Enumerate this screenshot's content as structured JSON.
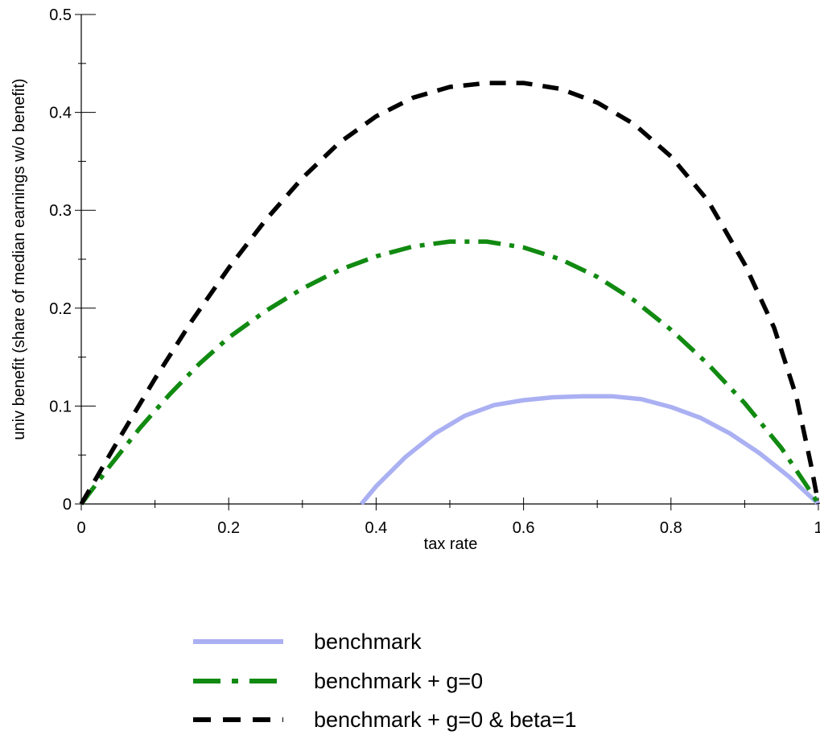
{
  "chart_data": {
    "type": "line",
    "title": "",
    "xlabel": "tax rate",
    "ylabel": "univ benefit (share of median earnings w/o benefit)",
    "xlim": [
      0,
      1
    ],
    "ylim": [
      0,
      0.5
    ],
    "x_ticks": [
      "0",
      "0.2",
      "0.4",
      "0.6",
      "0.8",
      "1"
    ],
    "y_ticks": [
      "0",
      "0.1",
      "0.2",
      "0.3",
      "0.4",
      "0.5"
    ],
    "grid": false,
    "legend_position": "bottom",
    "series": [
      {
        "name": "benchmark",
        "color": "#aab0f2",
        "style": "solid",
        "points": [
          [
            0.38,
            0.0
          ],
          [
            0.4,
            0.018
          ],
          [
            0.44,
            0.048
          ],
          [
            0.48,
            0.072
          ],
          [
            0.52,
            0.09
          ],
          [
            0.56,
            0.101
          ],
          [
            0.6,
            0.106
          ],
          [
            0.64,
            0.109
          ],
          [
            0.68,
            0.11
          ],
          [
            0.72,
            0.11
          ],
          [
            0.76,
            0.107
          ],
          [
            0.8,
            0.099
          ],
          [
            0.84,
            0.088
          ],
          [
            0.88,
            0.072
          ],
          [
            0.92,
            0.052
          ],
          [
            0.96,
            0.028
          ],
          [
            1.0,
            0.0
          ]
        ]
      },
      {
        "name": "benchmark + g=0",
        "color": "#118a11",
        "style": "dashdot",
        "points": [
          [
            0.0,
            0.0
          ],
          [
            0.04,
            0.04
          ],
          [
            0.08,
            0.078
          ],
          [
            0.12,
            0.112
          ],
          [
            0.16,
            0.143
          ],
          [
            0.2,
            0.17
          ],
          [
            0.25,
            0.197
          ],
          [
            0.3,
            0.22
          ],
          [
            0.35,
            0.239
          ],
          [
            0.4,
            0.253
          ],
          [
            0.45,
            0.263
          ],
          [
            0.5,
            0.268
          ],
          [
            0.55,
            0.268
          ],
          [
            0.6,
            0.262
          ],
          [
            0.65,
            0.25
          ],
          [
            0.7,
            0.232
          ],
          [
            0.75,
            0.208
          ],
          [
            0.8,
            0.178
          ],
          [
            0.85,
            0.143
          ],
          [
            0.9,
            0.103
          ],
          [
            0.95,
            0.057
          ],
          [
            0.99,
            0.012
          ],
          [
            1.0,
            0.0
          ]
        ]
      },
      {
        "name": "benchmark + g=0 & beta=1",
        "color": "#000000",
        "style": "dashed",
        "points": [
          [
            0.0,
            0.0
          ],
          [
            0.05,
            0.065
          ],
          [
            0.1,
            0.128
          ],
          [
            0.15,
            0.187
          ],
          [
            0.2,
            0.241
          ],
          [
            0.25,
            0.29
          ],
          [
            0.3,
            0.333
          ],
          [
            0.35,
            0.369
          ],
          [
            0.4,
            0.396
          ],
          [
            0.45,
            0.415
          ],
          [
            0.5,
            0.426
          ],
          [
            0.55,
            0.43
          ],
          [
            0.6,
            0.43
          ],
          [
            0.65,
            0.424
          ],
          [
            0.7,
            0.41
          ],
          [
            0.75,
            0.388
          ],
          [
            0.8,
            0.355
          ],
          [
            0.85,
            0.31
          ],
          [
            0.9,
            0.245
          ],
          [
            0.94,
            0.18
          ],
          [
            0.97,
            0.11
          ],
          [
            0.99,
            0.04
          ],
          [
            1.0,
            0.0
          ]
        ]
      }
    ]
  }
}
